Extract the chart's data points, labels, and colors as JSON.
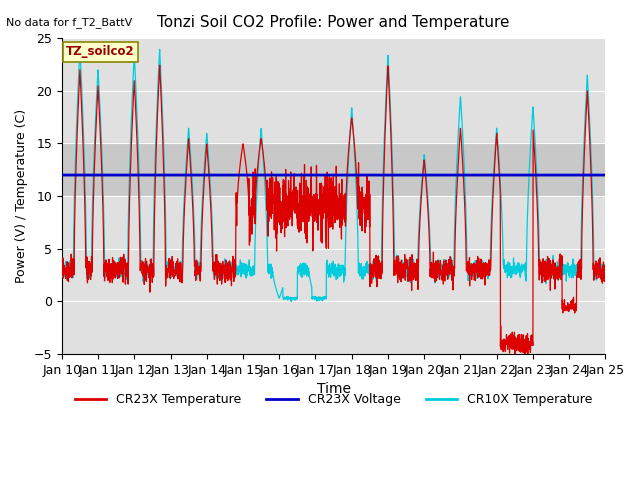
{
  "title": "Tonzi Soil CO2 Profile: Power and Temperature",
  "no_data_text": "No data for f_T2_BattV",
  "legend_box_text": "TZ_soilco2",
  "xlabel": "Time",
  "ylabel": "Power (V) / Temperature (C)",
  "ylim": [
    -5,
    25
  ],
  "xlim": [
    0,
    15
  ],
  "xtick_labels": [
    "Jan 10",
    "Jan 11",
    "Jan 12",
    "Jan 13",
    "Jan 14",
    "Jan 15",
    "Jan 16",
    "Jan 17",
    "Jan 18",
    "Jan 19",
    "Jan 20",
    "Jan 21",
    "Jan 22",
    "Jan 23",
    "Jan 24",
    "Jan 25"
  ],
  "voltage_value": 12.0,
  "bg_color": "#e0e0e0",
  "band_ymin": 10.0,
  "band_ymax": 15.0,
  "band_color": "#c8c8c8",
  "cr23x_color": "#dd0000",
  "cr10x_color": "#00ccdd",
  "voltage_color": "#0000cc",
  "legend_entries": [
    "CR23X Temperature",
    "CR23X Voltage",
    "CR10X Temperature"
  ],
  "figsize": [
    6.4,
    4.8
  ],
  "dpi": 100
}
